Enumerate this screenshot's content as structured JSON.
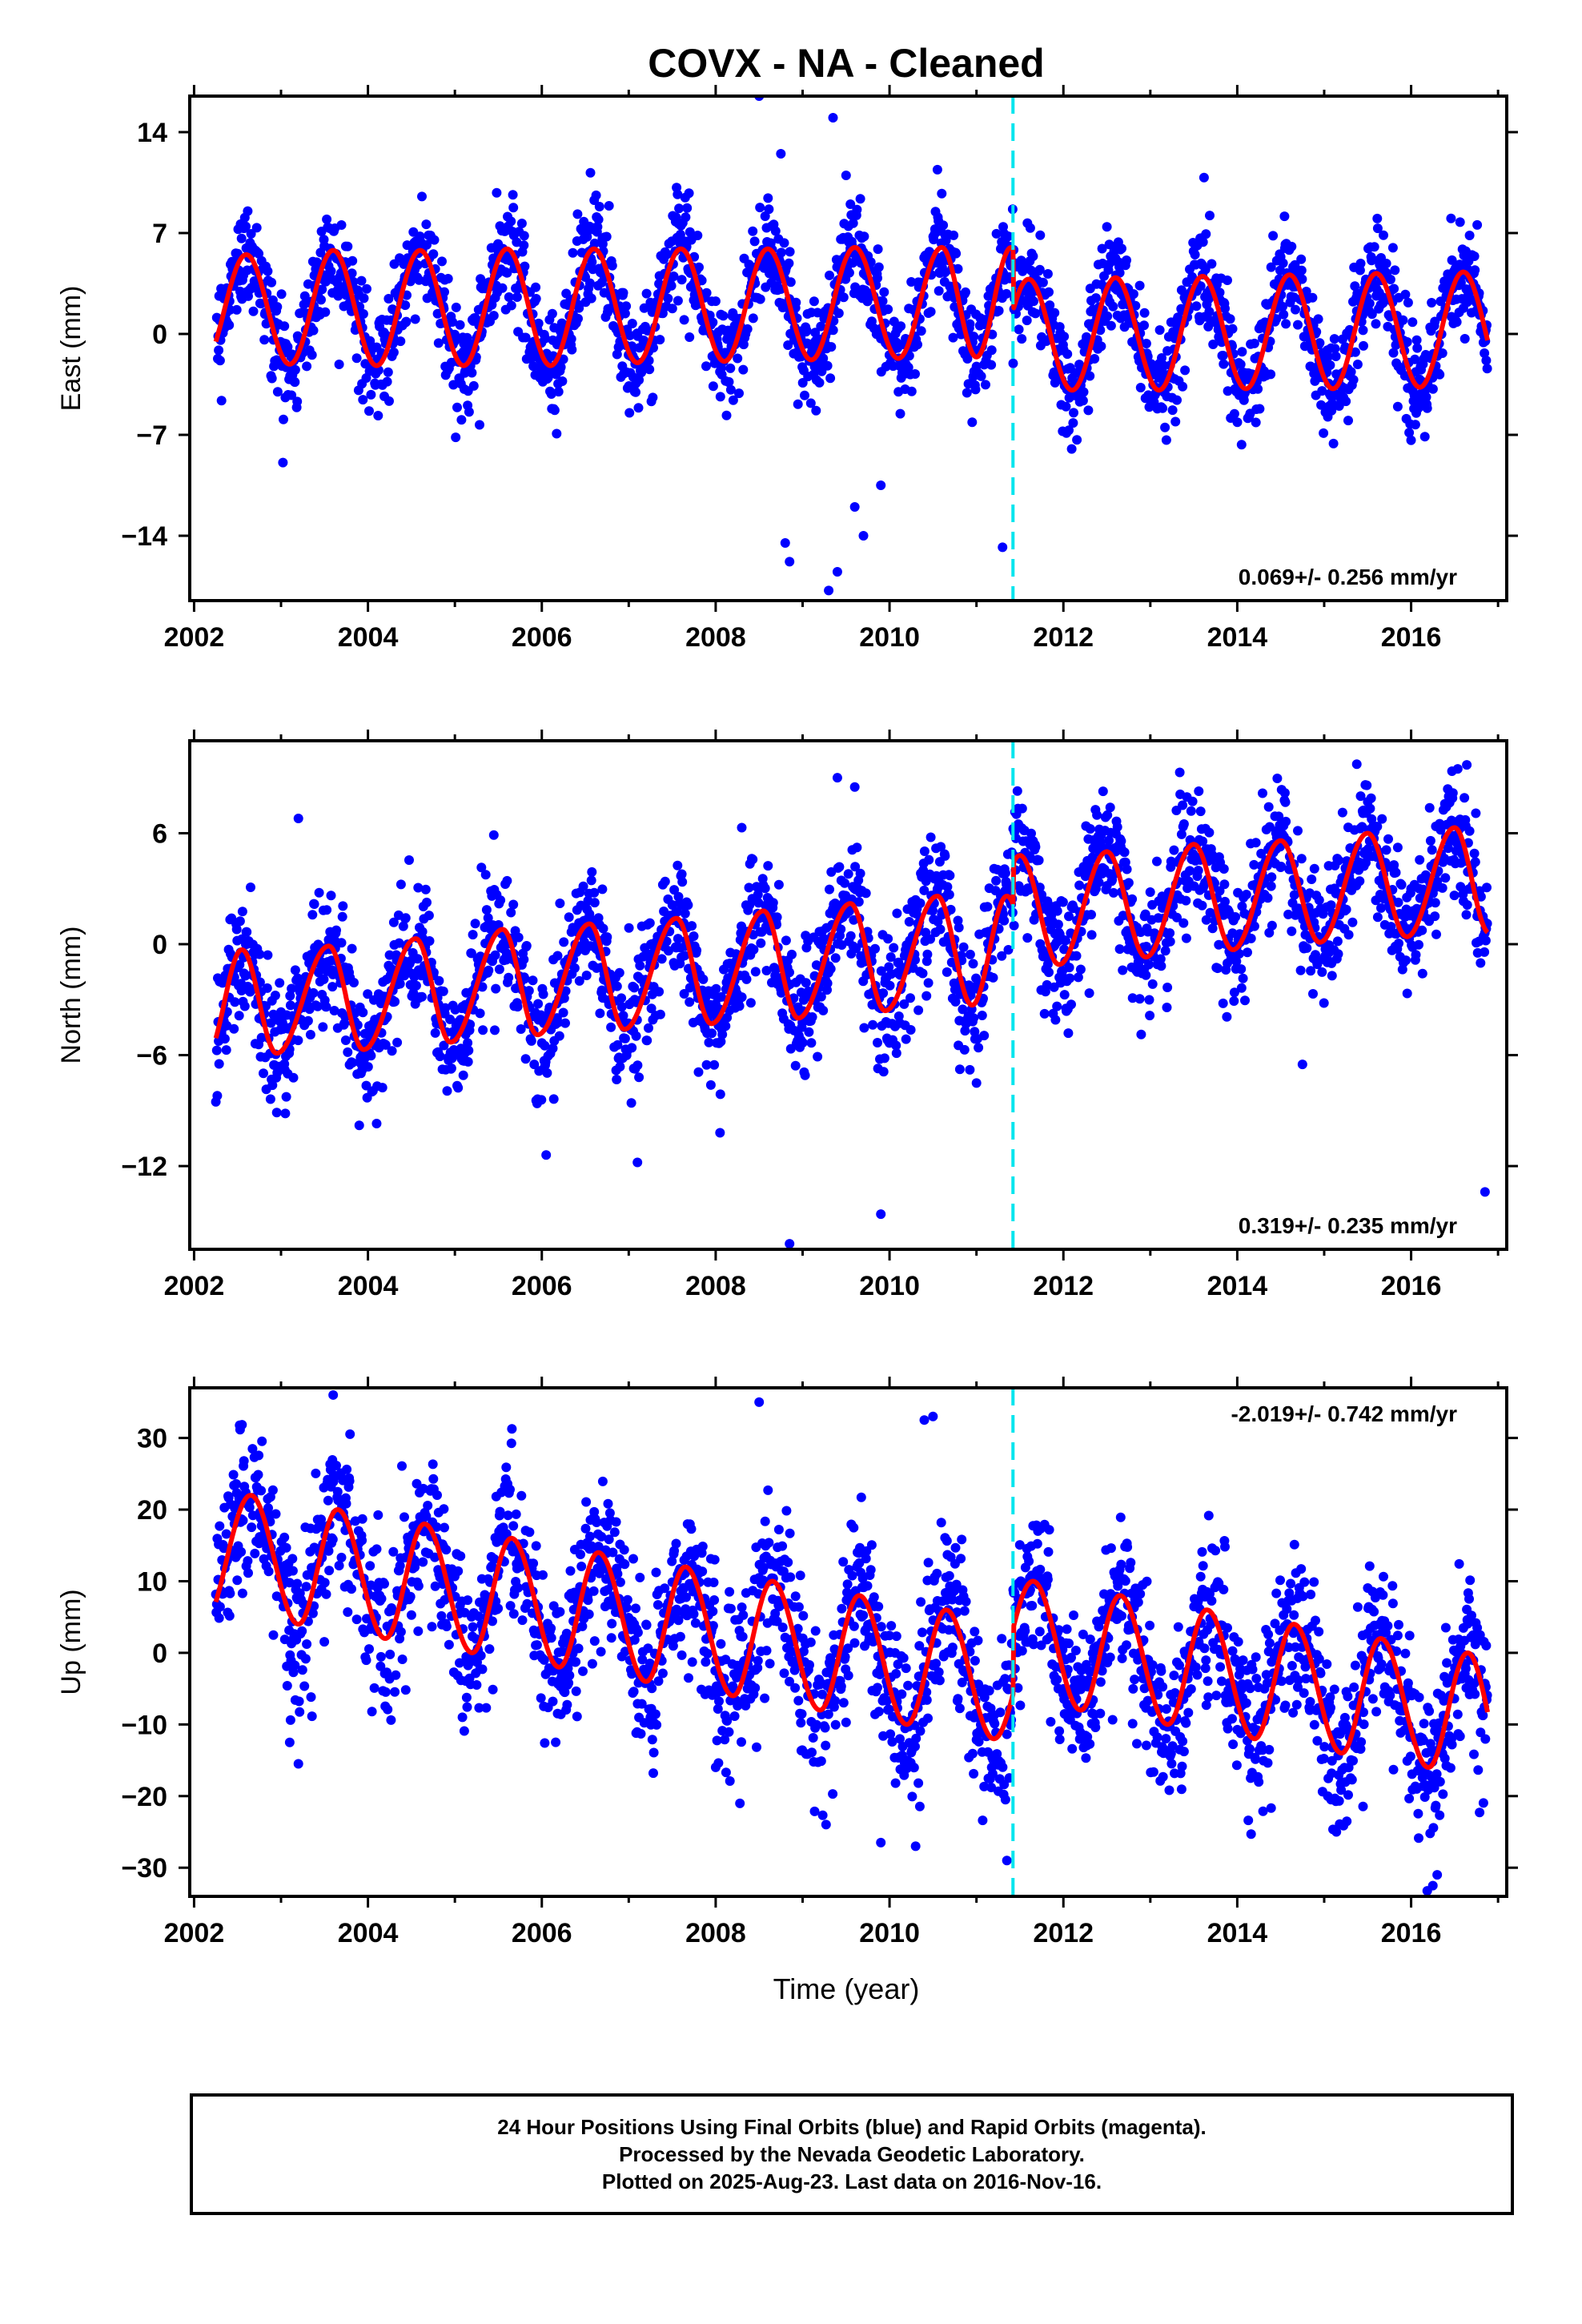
{
  "title": "COVX  - NA - Cleaned",
  "xlabel": "Time (year)",
  "footer": {
    "line1": "24 Hour Positions Using Final Orbits (blue) and Rapid Orbits (magenta).",
    "line2": "Processed by the Nevada Geodetic Laboratory.",
    "line3": "Plotted on 2025-Aug-23. Last data on 2016-Nov-16."
  },
  "colors": {
    "final_orbits": "#0000ff",
    "model_fit": "#ff0000",
    "offset_line": "#00e5ee",
    "frame": "#000000"
  },
  "chart_data": [
    {
      "type": "scatter",
      "component": "east",
      "ylabel": "East (mm)",
      "xlim": [
        2001.95,
        2017.1
      ],
      "ylim": [
        -18.5,
        16.5
      ],
      "xticks": [
        2002,
        2004,
        2006,
        2008,
        2010,
        2012,
        2014,
        2016
      ],
      "yticks": [
        -14,
        -7,
        0,
        7,
        14
      ],
      "rate_label": "0.069+/- 0.256 mm/yr",
      "rate_label_position": "bottom-right",
      "offset_epoch": 2011.42,
      "data_start": 2002.25,
      "data_end": 2016.88,
      "model": {
        "annual_peaks": [
          [
            2002.6,
            5.5
          ],
          [
            2003.6,
            5.8
          ],
          [
            2004.6,
            5.8
          ],
          [
            2005.6,
            5.9
          ],
          [
            2006.6,
            5.9
          ],
          [
            2007.6,
            5.9
          ],
          [
            2008.6,
            5.9
          ],
          [
            2009.6,
            6.0
          ],
          [
            2010.6,
            6.0
          ],
          [
            2011.6,
            3.8
          ],
          [
            2012.6,
            3.9
          ],
          [
            2013.6,
            4.0
          ],
          [
            2014.6,
            4.1
          ],
          [
            2015.6,
            4.2
          ],
          [
            2016.6,
            4.3
          ]
        ],
        "annual_troughs": [
          [
            2003.1,
            -2.1
          ],
          [
            2004.1,
            -2.2
          ],
          [
            2005.1,
            -2.2
          ],
          [
            2006.1,
            -2.2
          ],
          [
            2007.1,
            -2.0
          ],
          [
            2008.1,
            -1.9
          ],
          [
            2009.1,
            -1.8
          ],
          [
            2010.1,
            -1.7
          ],
          [
            2011.0,
            -1.6
          ],
          [
            2012.1,
            -3.9
          ],
          [
            2013.1,
            -3.9
          ],
          [
            2014.1,
            -3.8
          ],
          [
            2015.1,
            -3.8
          ],
          [
            2016.1,
            -3.7
          ]
        ]
      },
      "daily_scatter_mm": 1.8,
      "outliers": [
        [
          2008.5,
          16.5
        ],
        [
          2008.75,
          12.5
        ],
        [
          2009.35,
          15.0
        ],
        [
          2009.5,
          11.0
        ],
        [
          2009.55,
          9.0
        ],
        [
          2008.8,
          -14.5
        ],
        [
          2008.85,
          -15.8
        ],
        [
          2009.3,
          -17.8
        ],
        [
          2009.4,
          -16.5
        ],
        [
          2009.6,
          -12.0
        ],
        [
          2009.7,
          -14.0
        ],
        [
          2011.3,
          -14.8
        ],
        [
          2009.9,
          -10.5
        ]
      ]
    },
    {
      "type": "scatter",
      "component": "north",
      "ylabel": "North (mm)",
      "xlim": [
        2001.95,
        2017.1
      ],
      "ylim": [
        -16.5,
        11
      ],
      "xticks": [
        2002,
        2004,
        2006,
        2008,
        2010,
        2012,
        2014,
        2016
      ],
      "yticks": [
        -12,
        -6,
        0,
        6
      ],
      "rate_label": "0.319+/- 0.235 mm/yr",
      "rate_label_position": "bottom-right",
      "offset_epoch": 2011.42,
      "data_start": 2002.25,
      "data_end": 2016.88,
      "model": {
        "annual_peaks": [
          [
            2002.55,
            -0.3
          ],
          [
            2003.55,
            -0.1
          ],
          [
            2004.55,
            0.3
          ],
          [
            2005.55,
            0.8
          ],
          [
            2006.55,
            1.1
          ],
          [
            2007.55,
            1.4
          ],
          [
            2008.55,
            1.8
          ],
          [
            2009.55,
            2.2
          ],
          [
            2010.55,
            2.6
          ],
          [
            2011.5,
            4.8
          ],
          [
            2012.5,
            5.0
          ],
          [
            2013.5,
            5.4
          ],
          [
            2014.5,
            5.6
          ],
          [
            2015.5,
            6.0
          ],
          [
            2016.5,
            6.3
          ]
        ],
        "annual_troughs": [
          [
            2002.95,
            -5.9
          ],
          [
            2003.95,
            -5.7
          ],
          [
            2004.95,
            -5.3
          ],
          [
            2005.95,
            -4.9
          ],
          [
            2006.95,
            -4.6
          ],
          [
            2007.95,
            -4.3
          ],
          [
            2008.95,
            -4.0
          ],
          [
            2009.95,
            -3.6
          ],
          [
            2010.95,
            -3.3
          ],
          [
            2011.95,
            -1.1
          ],
          [
            2012.95,
            -0.7
          ],
          [
            2013.95,
            -0.3
          ],
          [
            2014.95,
            0.1
          ],
          [
            2015.95,
            0.4
          ],
          [
            2016.9,
            0.6
          ]
        ]
      },
      "daily_scatter_mm": 1.7,
      "outliers": [
        [
          2008.85,
          -16.2
        ],
        [
          2009.9,
          -14.6
        ],
        [
          2016.85,
          -13.4
        ],
        [
          2003.2,
          6.8
        ],
        [
          2009.4,
          9.0
        ],
        [
          2009.6,
          8.5
        ],
        [
          2008.3,
          6.3
        ],
        [
          2004.1,
          -9.7
        ],
        [
          2003.9,
          -9.8
        ],
        [
          2006.05,
          -11.4
        ],
        [
          2007.1,
          -11.8
        ],
        [
          2008.05,
          -10.2
        ],
        [
          2014.75,
          -6.5
        ]
      ]
    },
    {
      "type": "scatter",
      "component": "up",
      "ylabel": "Up (mm)",
      "xlim": [
        2001.95,
        2017.1
      ],
      "ylim": [
        -34,
        37
      ],
      "xticks": [
        2002,
        2004,
        2006,
        2008,
        2010,
        2012,
        2014,
        2016
      ],
      "yticks": [
        -30,
        -20,
        -10,
        0,
        10,
        20,
        30
      ],
      "rate_label": "-2.019+/- 0.742 mm/yr",
      "rate_label_position": "top-right",
      "offset_epoch": 2011.42,
      "data_start": 2002.25,
      "data_end": 2016.88,
      "model": {
        "annual_peaks": [
          [
            2002.65,
            22.0
          ],
          [
            2003.65,
            20.0
          ],
          [
            2004.65,
            18.0
          ],
          [
            2005.65,
            16.0
          ],
          [
            2006.65,
            14.0
          ],
          [
            2007.65,
            12.0
          ],
          [
            2008.65,
            10.0
          ],
          [
            2009.65,
            8.0
          ],
          [
            2010.65,
            6.0
          ],
          [
            2011.65,
            10.0
          ],
          [
            2012.65,
            8.0
          ],
          [
            2013.65,
            6.0
          ],
          [
            2014.65,
            4.0
          ],
          [
            2015.65,
            2.0
          ],
          [
            2016.65,
            0.0
          ]
        ],
        "annual_troughs": [
          [
            2003.2,
            4.0
          ],
          [
            2004.2,
            2.0
          ],
          [
            2005.2,
            0.0
          ],
          [
            2006.2,
            -2.0
          ],
          [
            2007.2,
            -4.0
          ],
          [
            2008.2,
            -6.0
          ],
          [
            2009.2,
            -8.0
          ],
          [
            2010.2,
            -10.0
          ],
          [
            2011.2,
            -12.0
          ],
          [
            2012.2,
            -8.0
          ],
          [
            2013.2,
            -10.0
          ],
          [
            2014.2,
            -12.0
          ],
          [
            2015.2,
            -14.0
          ],
          [
            2016.2,
            -16.0
          ]
        ]
      },
      "daily_scatter_mm": 5.5,
      "outliers": [
        [
          2003.6,
          36.0
        ],
        [
          2008.5,
          35.0
        ],
        [
          2010.5,
          33.0
        ],
        [
          2010.4,
          32.5
        ],
        [
          2011.35,
          -29.0
        ],
        [
          2016.25,
          -32.5
        ],
        [
          2016.3,
          -31.0
        ],
        [
          2003.2,
          -15.5
        ],
        [
          2010.3,
          -27.0
        ],
        [
          2009.9,
          -26.5
        ],
        [
          2003.1,
          -12.5
        ]
      ]
    }
  ]
}
